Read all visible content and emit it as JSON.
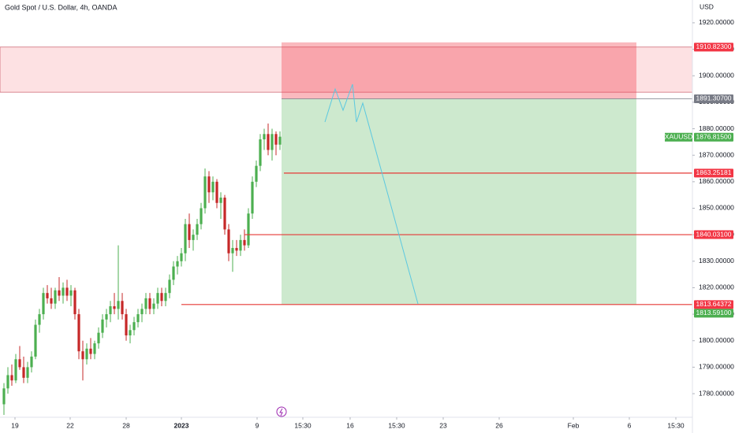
{
  "chart_data": {
    "type": "candlestick",
    "title": "Gold Spot / U.S. Dollar, 4h, OANDA",
    "unit": "USD",
    "symbol": "XAUUSD",
    "up_color": "#4caf50",
    "down_color": "#c62828",
    "open": [
      1776,
      1782,
      1787,
      1785,
      1793,
      1790,
      1786,
      1790,
      1794,
      1806,
      1810,
      1818,
      1816,
      1814,
      1819,
      1817,
      1820,
      1817,
      1819,
      1810,
      1796,
      1793,
      1797,
      1795,
      1799,
      1803,
      1808,
      1810,
      1813,
      1812,
      1815,
      1810,
      1802,
      1804,
      1807,
      1810,
      1812,
      1816,
      1812,
      1814,
      1818,
      1815,
      1818,
      1823,
      1828,
      1830,
      1833,
      1844,
      1838,
      1840,
      1844,
      1850,
      1862,
      1856,
      1860,
      1852,
      1854,
      1842,
      1833,
      1835,
      1834,
      1838,
      1836,
      1848,
      1860,
      1866,
      1876,
      1878,
      1872,
      1878,
      1874
    ],
    "high": [
      1784,
      1790,
      1791,
      1795,
      1798,
      1794,
      1792,
      1796,
      1808,
      1812,
      1820,
      1821,
      1820,
      1820,
      1824,
      1822,
      1823,
      1821,
      1820,
      1812,
      1800,
      1799,
      1801,
      1800,
      1805,
      1810,
      1812,
      1815,
      1818,
      1836,
      1818,
      1812,
      1806,
      1809,
      1812,
      1814,
      1818,
      1818,
      1816,
      1820,
      1820,
      1820,
      1825,
      1830,
      1832,
      1835,
      1846,
      1848,
      1842,
      1846,
      1852,
      1865,
      1864,
      1862,
      1861,
      1856,
      1855,
      1844,
      1838,
      1838,
      1840,
      1842,
      1850,
      1862,
      1868,
      1878,
      1880,
      1882,
      1880,
      1879,
      1879
    ],
    "low": [
      1772,
      1780,
      1783,
      1784,
      1789,
      1784,
      1784,
      1788,
      1793,
      1803,
      1808,
      1814,
      1812,
      1812,
      1815,
      1814,
      1815,
      1813,
      1808,
      1793,
      1785,
      1791,
      1793,
      1793,
      1797,
      1801,
      1805,
      1807,
      1810,
      1808,
      1808,
      1800,
      1799,
      1802,
      1805,
      1807,
      1810,
      1810,
      1810,
      1812,
      1813,
      1813,
      1816,
      1821,
      1825,
      1828,
      1830,
      1835,
      1834,
      1838,
      1842,
      1848,
      1852,
      1853,
      1850,
      1846,
      1840,
      1830,
      1826,
      1832,
      1832,
      1834,
      1835,
      1846,
      1858,
      1864,
      1872,
      1870,
      1868,
      1870,
      1872
    ],
    "close": [
      1782,
      1787,
      1785,
      1793,
      1790,
      1786,
      1790,
      1794,
      1806,
      1810,
      1818,
      1816,
      1814,
      1819,
      1817,
      1820,
      1817,
      1819,
      1810,
      1796,
      1793,
      1797,
      1795,
      1799,
      1803,
      1808,
      1810,
      1813,
      1812,
      1815,
      1810,
      1802,
      1804,
      1807,
      1810,
      1812,
      1816,
      1812,
      1814,
      1818,
      1815,
      1818,
      1823,
      1828,
      1830,
      1833,
      1844,
      1838,
      1840,
      1844,
      1850,
      1862,
      1856,
      1860,
      1852,
      1854,
      1842,
      1833,
      1835,
      1834,
      1838,
      1836,
      1848,
      1860,
      1866,
      1876,
      1878,
      1872,
      1878,
      1874,
      1877
    ],
    "ylim": [
      1771.1,
      1928.6
    ],
    "yticks": [
      {
        "value": 1780,
        "label": "1780.00000"
      },
      {
        "value": 1790,
        "label": "1790.00000"
      },
      {
        "value": 1800,
        "label": "1800.00000"
      },
      {
        "value": 1810,
        "label": "1810.00000"
      },
      {
        "value": 1820,
        "label": "1820.00000"
      },
      {
        "value": 1830,
        "label": "1830.00000"
      },
      {
        "value": 1840,
        "label": "1840.00000"
      },
      {
        "value": 1850,
        "label": "1850.00000"
      },
      {
        "value": 1860,
        "label": "1860.00000"
      },
      {
        "value": 1870,
        "label": "1870.00000"
      },
      {
        "value": 1880,
        "label": "1880.00000"
      },
      {
        "value": 1890,
        "label": "1890.00000"
      },
      {
        "value": 1900,
        "label": "1900.00000"
      },
      {
        "value": 1910,
        "label": "1910.00000"
      },
      {
        "value": 1920,
        "label": "1920.00000"
      }
    ],
    "xlim": [
      0,
      175.6
    ],
    "xticks": [
      {
        "value": 3.8,
        "label": "19"
      },
      {
        "value": 17.8,
        "label": "22"
      },
      {
        "value": 32,
        "label": "28"
      },
      {
        "value": 46,
        "label": "2023"
      },
      {
        "value": 65.2,
        "label": "9"
      },
      {
        "value": 76.8,
        "label": "15:30"
      },
      {
        "value": 88.8,
        "label": "16"
      },
      {
        "value": 100.6,
        "label": "15:30"
      },
      {
        "value": 112.4,
        "label": "23"
      },
      {
        "value": 126.6,
        "label": "26"
      },
      {
        "value": 145.4,
        "label": "Feb"
      },
      {
        "value": 159.6,
        "label": "6"
      },
      {
        "value": 171.4,
        "label": "15:30"
      }
    ],
    "zone": [
      1910.823,
      1893.8
    ],
    "price_tags": [
      {
        "value": 1910.823,
        "label": "1910.82300",
        "color": "#f23645"
      },
      {
        "value": 1891.307,
        "label": "1891.30700",
        "color": "#787b86"
      },
      {
        "value": 1876.815,
        "label": "1876.81500",
        "color": "#4caf50"
      },
      {
        "value": 1863.25181,
        "label": "1863.25181",
        "color": "#f23645"
      },
      {
        "value": 1840.031,
        "label": "1840.03100",
        "color": "#f23645"
      },
      {
        "value": 1813.64372,
        "label": "1813.64372",
        "color": "#f23645"
      },
      {
        "value": 1813.591,
        "label": "1813.59100",
        "color": "#4caf50"
      }
    ]
  }
}
